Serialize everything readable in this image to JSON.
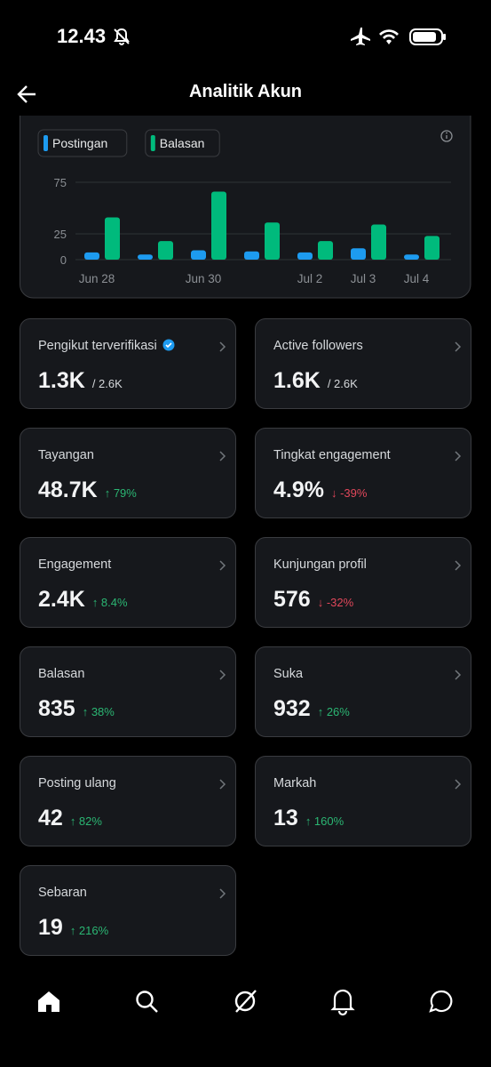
{
  "status_bar": {
    "time": "12.43"
  },
  "header": {
    "title": "Analitik Akun"
  },
  "chart_data": {
    "type": "bar",
    "categories": [
      "Jun 28",
      null,
      "Jun 30",
      null,
      "Jul 2",
      "Jul 3",
      "Jul 4"
    ],
    "series": [
      {
        "name": "Postingan",
        "color": "#1d9bf0",
        "values": [
          7,
          5,
          9,
          8,
          7,
          11,
          5
        ]
      },
      {
        "name": "Balasan",
        "color": "#00ba7c",
        "values": [
          41,
          18,
          66,
          36,
          18,
          34,
          23
        ]
      }
    ],
    "ylim": [
      0,
      75
    ],
    "yticks": [
      0,
      25,
      75
    ],
    "grid": true
  },
  "metrics": [
    {
      "label": "Pengikut terverifikasi",
      "value": "1.3K",
      "total": "/ 2.6K",
      "verified": true
    },
    {
      "label": "Active followers",
      "value": "1.6K",
      "total": "/ 2.6K"
    },
    {
      "label": "Tayangan",
      "value": "48.7K",
      "change": "↑ 79%",
      "trend": "up"
    },
    {
      "label": "Tingkat engagement",
      "value": "4.9%",
      "change": "↓ -39%",
      "trend": "down"
    },
    {
      "label": "Engagement",
      "value": "2.4K",
      "change": "↑ 8.4%",
      "trend": "up"
    },
    {
      "label": "Kunjungan profil",
      "value": "576",
      "change": "↓ -32%",
      "trend": "down"
    },
    {
      "label": "Balasan",
      "value": "835",
      "change": "↑ 38%",
      "trend": "up"
    },
    {
      "label": "Suka",
      "value": "932",
      "change": "↑ 26%",
      "trend": "up"
    },
    {
      "label": "Posting ulang",
      "value": "42",
      "change": "↑ 82%",
      "trend": "up"
    },
    {
      "label": "Markah",
      "value": "13",
      "change": "↑ 160%",
      "trend": "up"
    },
    {
      "label": "Sebaran",
      "value": "19",
      "change": "↑ 216%",
      "trend": "up"
    }
  ]
}
